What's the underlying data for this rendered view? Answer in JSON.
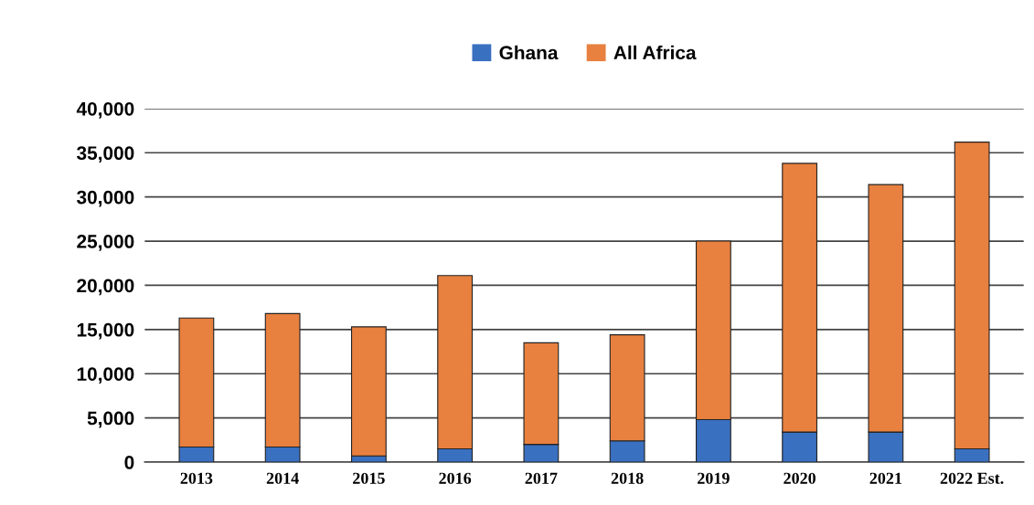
{
  "chart_data": {
    "type": "bar",
    "stacked": true,
    "categories": [
      "2013",
      "2014",
      "2015",
      "2016",
      "2017",
      "2018",
      "2019",
      "2020",
      "2021",
      "2022 Est."
    ],
    "series": [
      {
        "name": "Ghana",
        "color": "#3a70c0",
        "values": [
          1700,
          1700,
          700,
          1500,
          2000,
          2400,
          4800,
          3400,
          3400,
          1500
        ]
      },
      {
        "name": "All Africa",
        "color": "#e8803f",
        "values": [
          14600,
          15100,
          14600,
          19600,
          11500,
          12000,
          20200,
          30400,
          28000,
          34700
        ]
      }
    ],
    "ylim": [
      0,
      40000
    ],
    "yticks": [
      {
        "value": 0,
        "label": "0"
      },
      {
        "value": 5000,
        "label": "5,000"
      },
      {
        "value": 10000,
        "label": "10,000"
      },
      {
        "value": 15000,
        "label": "15,000"
      },
      {
        "value": 20000,
        "label": "20,000"
      },
      {
        "value": 25000,
        "label": "25,000"
      },
      {
        "value": 30000,
        "label": "30,000"
      },
      {
        "value": 35000,
        "label": "35,000"
      },
      {
        "value": 40000,
        "label": "40,000"
      }
    ],
    "grid": "y",
    "legend": "top"
  }
}
